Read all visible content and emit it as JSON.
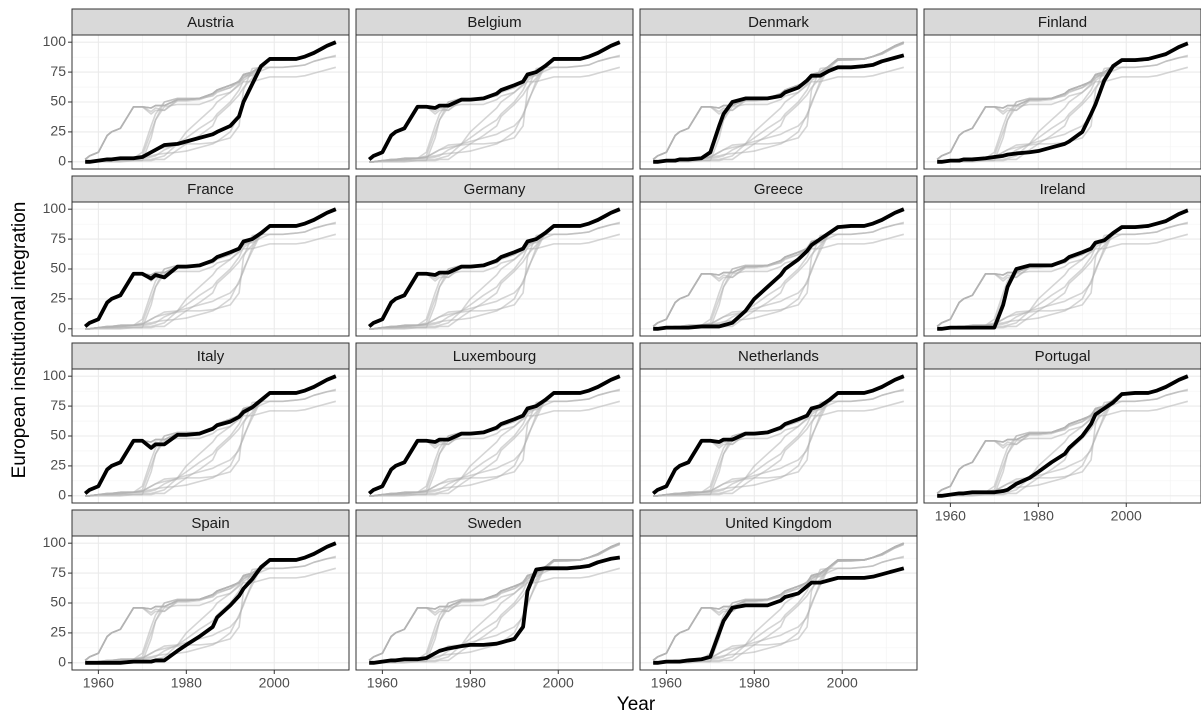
{
  "chart_data": {
    "type": "line",
    "xlabel": "Year",
    "ylabel": "European institutional integration",
    "xlim": [
      1954,
      2017
    ],
    "ylim": [
      -6,
      106
    ],
    "xticks": [
      1960,
      1980,
      2000
    ],
    "yticks": [
      0,
      25,
      50,
      75,
      100
    ],
    "grid": true,
    "color": "#000000",
    "other_color": "#b3b3b3",
    "x": [
      1957,
      1958,
      1960,
      1962,
      1963,
      1965,
      1968,
      1970,
      1972,
      1973,
      1975,
      1978,
      1980,
      1983,
      1986,
      1987,
      1990,
      1992,
      1993,
      1995,
      1997,
      1999,
      2002,
      2005,
      2007,
      2009,
      2011,
      2012,
      2014
    ],
    "series": [
      {
        "name": "Austria",
        "values": [
          0,
          0,
          1,
          2,
          2,
          3,
          3,
          4,
          8,
          10,
          14,
          15,
          17,
          20,
          23,
          25,
          30,
          38,
          50,
          65,
          80,
          86,
          86,
          86,
          88,
          91,
          95,
          97,
          100
        ]
      },
      {
        "name": "Belgium",
        "values": [
          2,
          5,
          8,
          22,
          25,
          28,
          46,
          46,
          45,
          47,
          47,
          52,
          52,
          53,
          57,
          60,
          64,
          67,
          73,
          75,
          80,
          86,
          86,
          86,
          88,
          91,
          95,
          97,
          100
        ]
      },
      {
        "name": "Denmark",
        "values": [
          0,
          0,
          1,
          1,
          2,
          2,
          3,
          8,
          30,
          40,
          50,
          53,
          53,
          53,
          55,
          58,
          62,
          68,
          72,
          72,
          76,
          79,
          79,
          80,
          81,
          84,
          86,
          87,
          89
        ]
      },
      {
        "name": "Finland",
        "values": [
          0,
          0,
          1,
          1,
          2,
          2,
          3,
          4,
          5,
          6,
          7,
          8,
          9,
          12,
          15,
          17,
          25,
          40,
          48,
          68,
          80,
          85,
          85,
          86,
          88,
          90,
          94,
          96,
          99
        ]
      },
      {
        "name": "France",
        "values": [
          2,
          5,
          8,
          22,
          25,
          28,
          46,
          46,
          42,
          45,
          43,
          52,
          52,
          53,
          57,
          60,
          64,
          67,
          73,
          75,
          80,
          86,
          86,
          86,
          88,
          91,
          95,
          97,
          100
        ]
      },
      {
        "name": "Germany",
        "values": [
          2,
          5,
          8,
          22,
          25,
          28,
          46,
          46,
          45,
          47,
          47,
          52,
          52,
          53,
          57,
          60,
          64,
          67,
          73,
          75,
          80,
          86,
          86,
          86,
          88,
          91,
          95,
          97,
          100
        ]
      },
      {
        "name": "Greece",
        "values": [
          0,
          0,
          1,
          1,
          1,
          1,
          2,
          2,
          2,
          3,
          5,
          15,
          25,
          35,
          45,
          50,
          58,
          65,
          70,
          75,
          80,
          85,
          86,
          86,
          88,
          91,
          95,
          97,
          100
        ]
      },
      {
        "name": "Ireland",
        "values": [
          0,
          0,
          1,
          1,
          1,
          1,
          1,
          1,
          20,
          35,
          50,
          53,
          53,
          53,
          57,
          60,
          64,
          67,
          72,
          74,
          80,
          85,
          85,
          86,
          88,
          90,
          94,
          96,
          99
        ]
      },
      {
        "name": "Italy",
        "values": [
          2,
          5,
          8,
          22,
          25,
          28,
          46,
          46,
          40,
          43,
          43,
          51,
          51,
          52,
          56,
          59,
          62,
          66,
          70,
          74,
          80,
          86,
          86,
          86,
          88,
          91,
          95,
          97,
          100
        ]
      },
      {
        "name": "Luxembourg",
        "values": [
          2,
          5,
          8,
          22,
          25,
          28,
          46,
          46,
          45,
          47,
          47,
          52,
          52,
          53,
          57,
          60,
          64,
          67,
          73,
          75,
          80,
          86,
          86,
          86,
          88,
          91,
          95,
          97,
          100
        ]
      },
      {
        "name": "Netherlands",
        "values": [
          2,
          5,
          8,
          22,
          25,
          28,
          46,
          46,
          45,
          47,
          47,
          52,
          52,
          53,
          57,
          60,
          64,
          67,
          73,
          75,
          80,
          86,
          86,
          86,
          88,
          91,
          95,
          97,
          100
        ]
      },
      {
        "name": "Portugal",
        "values": [
          0,
          0,
          1,
          2,
          2,
          3,
          3,
          3,
          4,
          5,
          10,
          15,
          20,
          28,
          35,
          40,
          50,
          60,
          68,
          73,
          78,
          85,
          86,
          86,
          88,
          91,
          95,
          97,
          100
        ]
      },
      {
        "name": "Spain",
        "values": [
          0,
          0,
          0,
          0,
          0,
          0,
          1,
          1,
          1,
          2,
          2,
          10,
          15,
          22,
          30,
          38,
          48,
          56,
          62,
          70,
          80,
          86,
          86,
          86,
          88,
          91,
          95,
          97,
          100
        ]
      },
      {
        "name": "Sweden",
        "values": [
          0,
          0,
          1,
          2,
          2,
          3,
          3,
          4,
          8,
          10,
          12,
          14,
          15,
          15,
          16,
          17,
          20,
          30,
          60,
          78,
          79,
          79,
          79,
          80,
          81,
          84,
          86,
          87,
          88
        ]
      },
      {
        "name": "United Kingdom",
        "values": [
          0,
          0,
          1,
          1,
          1,
          2,
          3,
          5,
          25,
          35,
          46,
          48,
          48,
          48,
          52,
          55,
          58,
          64,
          67,
          67,
          69,
          71,
          71,
          71,
          72,
          74,
          76,
          77,
          79
        ]
      }
    ]
  }
}
